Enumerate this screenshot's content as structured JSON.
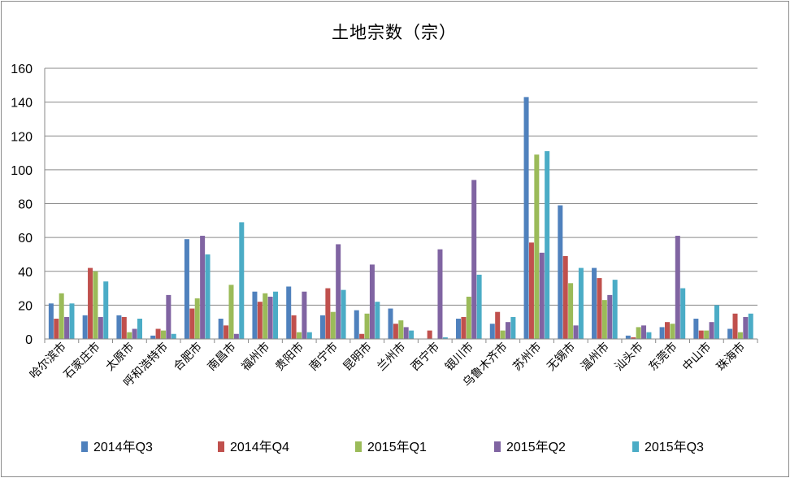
{
  "chart_data": {
    "type": "bar",
    "title": "土地宗数（宗）",
    "xlabel": "",
    "ylabel": "",
    "ylim": [
      0,
      160
    ],
    "yticks": [
      0,
      20,
      40,
      60,
      80,
      100,
      120,
      140,
      160
    ],
    "grid": true,
    "legend_position": "bottom",
    "categories": [
      "哈尔滨市",
      "石家庄市",
      "太原市",
      "呼和浩特市",
      "合肥市",
      "南昌市",
      "福州市",
      "贵阳市",
      "南宁市",
      "昆明市",
      "兰州市",
      "西宁市",
      "银川市",
      "乌鲁木齐市",
      "苏州市",
      "无锡市",
      "温州市",
      "汕头市",
      "东莞市",
      "中山市",
      "珠海市"
    ],
    "series": [
      {
        "name": "2014年Q3",
        "color": "#4f81bd",
        "values": [
          21,
          14,
          14,
          2,
          59,
          12,
          28,
          31,
          14,
          17,
          18,
          0,
          12,
          9,
          143,
          79,
          42,
          2,
          7,
          12,
          6
        ]
      },
      {
        "name": "2014年Q4",
        "color": "#c0504d",
        "values": [
          12,
          42,
          13,
          6,
          18,
          8,
          22,
          14,
          30,
          3,
          9,
          5,
          13,
          16,
          57,
          49,
          36,
          1,
          10,
          5,
          15
        ]
      },
      {
        "name": "2015年Q1",
        "color": "#9bbb59",
        "values": [
          27,
          40,
          4,
          5,
          24,
          32,
          27,
          4,
          16,
          15,
          11,
          0,
          25,
          5,
          109,
          33,
          23,
          7,
          9,
          5,
          4
        ]
      },
      {
        "name": "2015年Q2",
        "color": "#8064a2",
        "values": [
          13,
          13,
          6,
          26,
          61,
          3,
          25,
          28,
          56,
          44,
          7,
          53,
          94,
          10,
          51,
          8,
          26,
          8,
          61,
          10,
          13
        ]
      },
      {
        "name": "2015年Q3",
        "color": "#4bacc6",
        "values": [
          21,
          34,
          12,
          3,
          50,
          69,
          28,
          4,
          29,
          22,
          5,
          1,
          38,
          13,
          111,
          42,
          35,
          4,
          30,
          20,
          15
        ]
      }
    ]
  }
}
